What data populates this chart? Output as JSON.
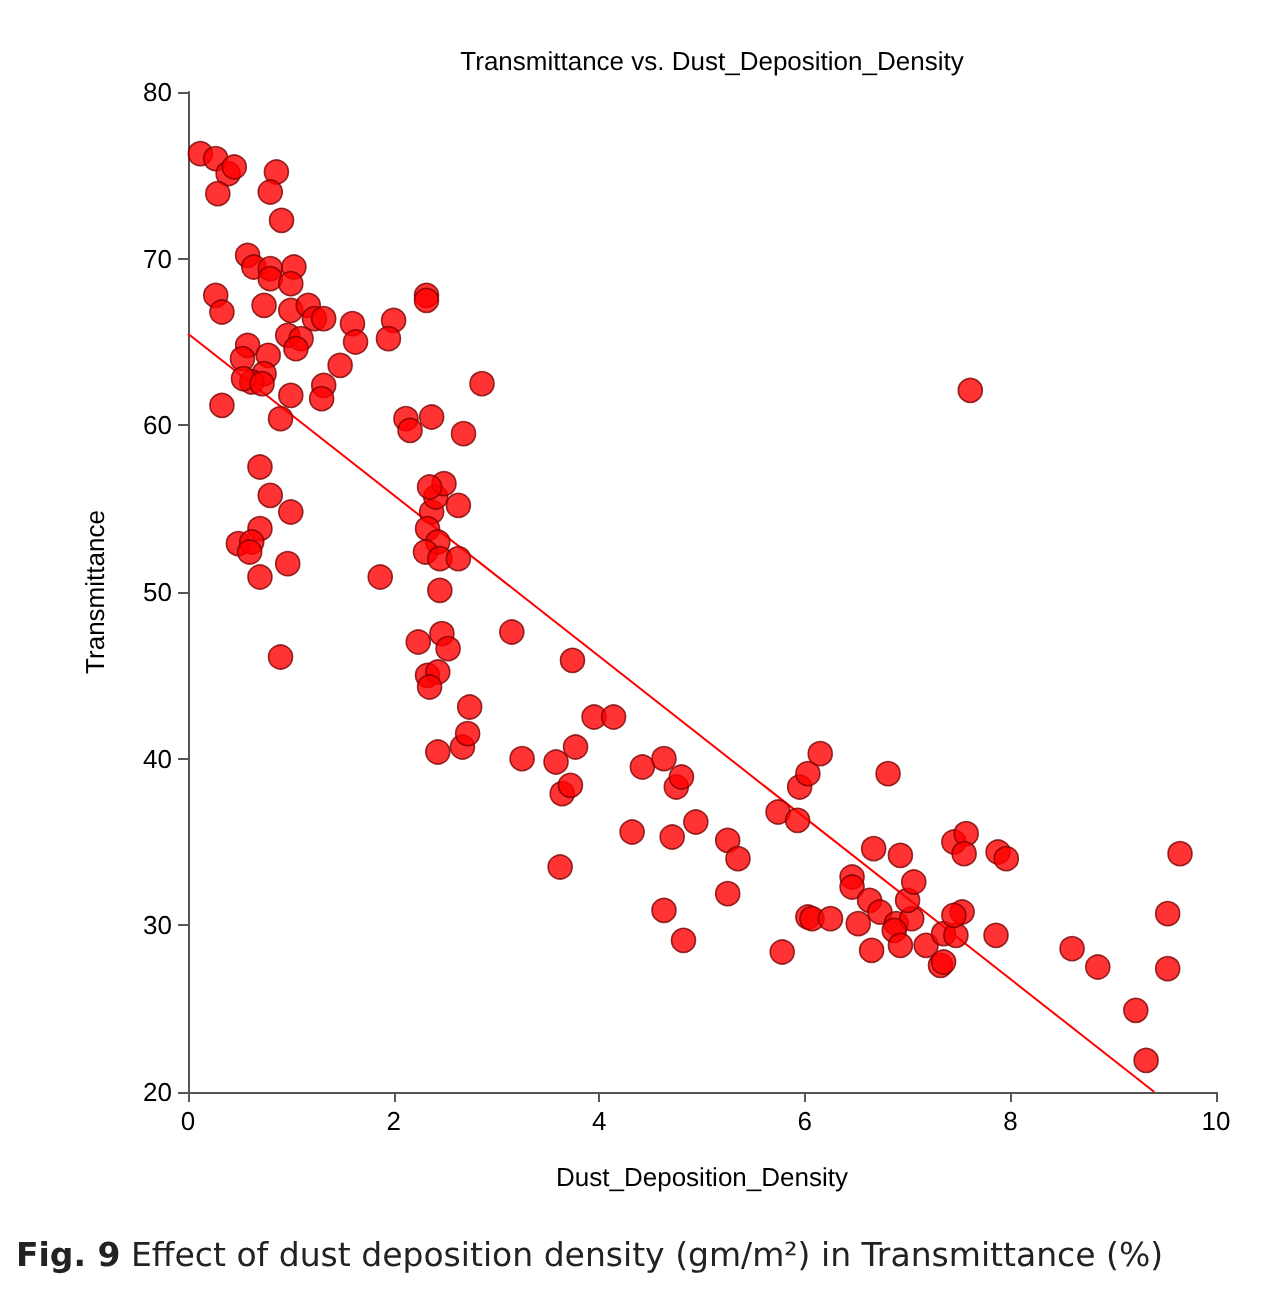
{
  "chart_data": {
    "type": "scatter",
    "title": "Transmittance vs. Dust_Deposition_Density",
    "xlabel": "Dust_Deposition_Density",
    "ylabel": "Transmittance",
    "xlim": [
      0,
      10
    ],
    "xticks": [
      0,
      2,
      4,
      6,
      8,
      10
    ],
    "ylim": [
      20,
      80
    ],
    "yticks": [
      20,
      30,
      40,
      50,
      60,
      70,
      80
    ],
    "grid": false,
    "marker": "circle",
    "series": [
      {
        "color": "#ff0000",
        "x": [
          0.12,
          0.27,
          0.39,
          0.45,
          0.29,
          0.86,
          0.8,
          0.91,
          0.58,
          0.64,
          0.8,
          0.8,
          1.03,
          1.0,
          0.27,
          0.33,
          0.74,
          1.0,
          1.17,
          1.23,
          1.32,
          1.6,
          2.0,
          2.32,
          2.32,
          0.97,
          1.1,
          1.63,
          1.95,
          0.58,
          0.53,
          0.78,
          1.05,
          1.48,
          0.74,
          0.62,
          0.54,
          0.72,
          1.32,
          1.3,
          1.0,
          0.33,
          2.86,
          0.9,
          2.12,
          2.16,
          2.37,
          2.68,
          0.7,
          0.8,
          1.0,
          0.7,
          0.49,
          0.62,
          0.6,
          0.97,
          0.7,
          0.9,
          1.87,
          2.37,
          2.41,
          2.49,
          2.35,
          2.33,
          2.43,
          2.31,
          2.45,
          2.63,
          2.63,
          2.45,
          2.24,
          2.47,
          2.53,
          2.33,
          2.43,
          2.35,
          2.43,
          2.67,
          2.72,
          2.74,
          3.15,
          3.25,
          3.58,
          3.74,
          3.77,
          3.64,
          3.72,
          3.62,
          3.95,
          4.14,
          4.32,
          4.42,
          4.63,
          4.75,
          4.8,
          4.71,
          4.94,
          4.63,
          4.82,
          5.25,
          5.35,
          5.25,
          5.74,
          5.93,
          5.78,
          5.95,
          6.03,
          6.15,
          6.03,
          6.07,
          6.25,
          6.81,
          6.67,
          6.93,
          6.46,
          6.46,
          6.63,
          6.73,
          6.89,
          7.04,
          7.0,
          7.06,
          6.52,
          6.65,
          6.87,
          6.93,
          7.18,
          7.35,
          7.32,
          7.35,
          7.47,
          7.53,
          7.45,
          7.45,
          7.57,
          7.55,
          7.88,
          7.96,
          7.61,
          7.86,
          8.6,
          8.85,
          9.22,
          9.32,
          9.53,
          9.53,
          9.65
        ],
        "values": [
          76.3,
          76.0,
          75.1,
          75.5,
          73.9,
          75.2,
          74.0,
          72.3,
          70.2,
          69.5,
          69.4,
          68.8,
          69.5,
          68.5,
          67.8,
          66.8,
          67.2,
          66.9,
          67.2,
          66.4,
          66.4,
          66.1,
          66.3,
          67.8,
          67.5,
          65.4,
          65.2,
          65.0,
          65.2,
          64.8,
          64.0,
          64.2,
          64.6,
          63.6,
          63.1,
          62.6,
          62.8,
          62.5,
          62.4,
          61.6,
          61.8,
          61.2,
          62.5,
          60.4,
          60.4,
          59.7,
          60.5,
          59.5,
          57.5,
          55.8,
          54.8,
          53.8,
          52.9,
          53.0,
          52.4,
          51.7,
          50.9,
          46.1,
          50.9,
          54.8,
          55.7,
          56.5,
          56.3,
          53.8,
          53.0,
          52.4,
          52.0,
          52.0,
          55.2,
          50.1,
          47.0,
          47.5,
          46.6,
          45.0,
          45.2,
          44.3,
          40.4,
          40.7,
          41.5,
          43.1,
          47.6,
          40.0,
          39.8,
          45.9,
          40.7,
          37.9,
          38.4,
          33.5,
          42.5,
          42.5,
          35.6,
          39.5,
          40.0,
          38.3,
          38.9,
          35.3,
          36.2,
          30.9,
          29.1,
          35.1,
          34.0,
          31.9,
          36.8,
          36.3,
          28.4,
          38.3,
          39.1,
          40.3,
          30.5,
          30.4,
          30.4,
          39.1,
          34.6,
          34.2,
          32.9,
          32.3,
          31.5,
          30.8,
          30.1,
          30.4,
          31.5,
          32.6,
          30.1,
          28.5,
          29.7,
          28.8,
          28.8,
          29.5,
          27.6,
          27.8,
          29.4,
          30.8,
          30.6,
          35.0,
          35.5,
          34.3,
          34.4,
          34.0,
          62.1,
          29.4,
          28.6,
          27.5,
          24.9,
          21.9,
          30.7,
          27.4,
          34.3
        ]
      },
      {
        "type": "line",
        "color": "#ff0000",
        "marker": "none",
        "line_style": "solid",
        "x": [
          0,
          9.4
        ],
        "values": [
          65.5,
          20
        ]
      }
    ],
    "annotations": [
      "Fig. 9  Effect of dust deposition density (gm/m²) in Transmittance (%)"
    ]
  }
}
